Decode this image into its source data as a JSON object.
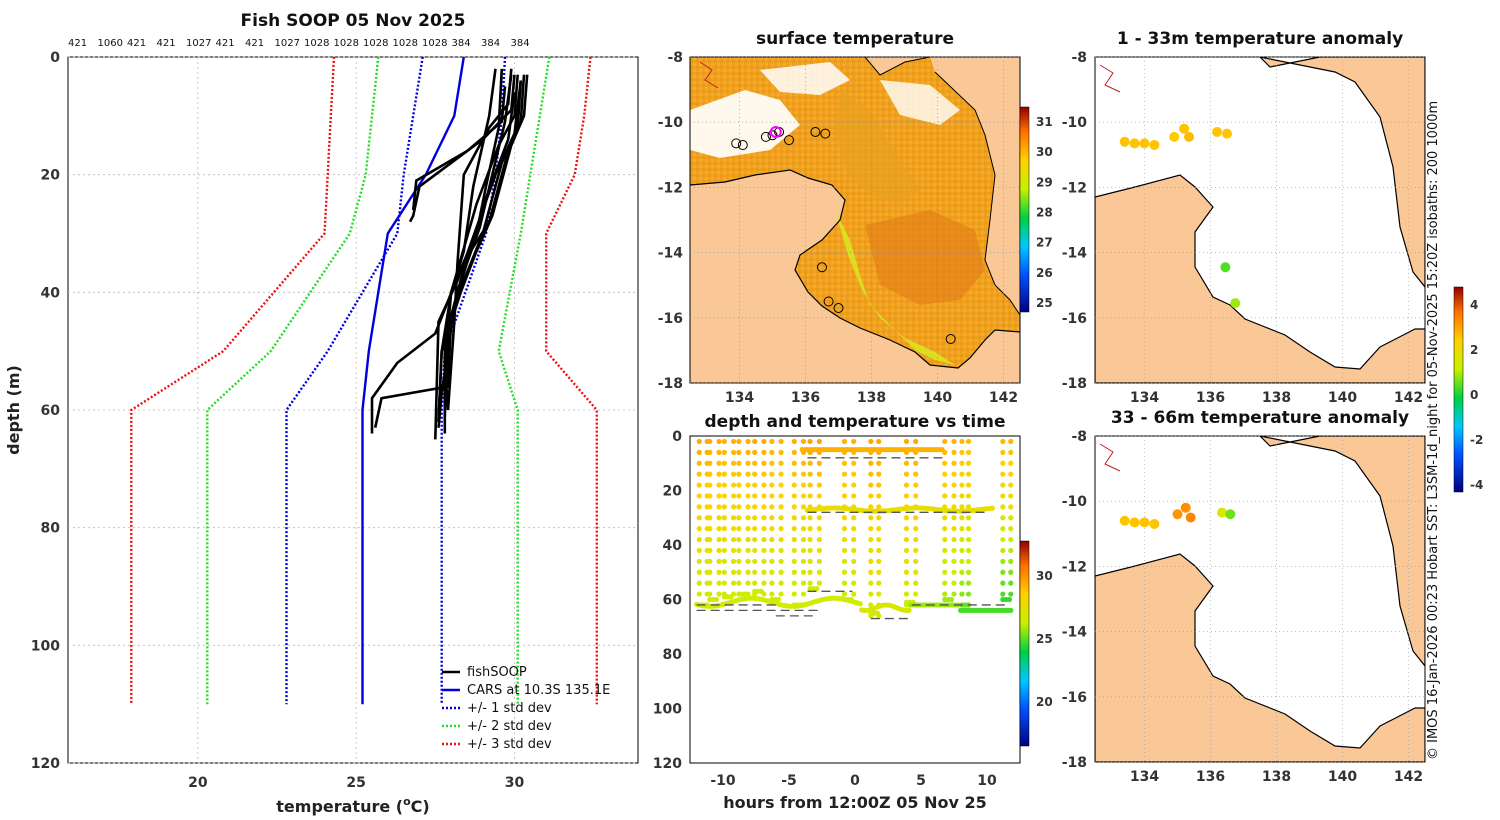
{
  "chart_data": [
    {
      "type": "line",
      "title": "Fish SOOP 05 Nov 2025",
      "xlabel": "temperature (",
      "xlabel_sup": "o",
      "xlabel_end": "C)",
      "ylabel": "depth (m)",
      "xlim": [
        15.9,
        33.9
      ],
      "ylim": [
        120,
        0
      ],
      "xticks": [
        20,
        25,
        30
      ],
      "yticks": [
        0,
        20,
        40,
        60,
        80,
        100,
        120
      ],
      "grid": true,
      "legend_position": "bottom-right",
      "top_labels": [
        "421",
        "1060",
        "421",
        "421",
        "1027",
        "421",
        "421",
        "1027",
        "1028",
        "1028",
        "1028",
        "1028",
        "1028",
        "384",
        "384",
        "384"
      ],
      "legend": [
        "fishSOOP",
        "CARS at 10.3S 135.1E",
        "+/- 1 std dev",
        "+/- 2 std dev",
        "+/- 3 std dev"
      ],
      "series": [
        {
          "name": "CARS at 10.3S 135.1E",
          "color": "#0000dd",
          "style": "solid",
          "points": [
            [
              28.4,
              0
            ],
            [
              28.1,
              10
            ],
            [
              27.2,
              20
            ],
            [
              26.0,
              30
            ],
            [
              25.7,
              40
            ],
            [
              25.4,
              50
            ],
            [
              25.2,
              60
            ],
            [
              25.2,
              110
            ]
          ]
        },
        {
          "name": "+/- 1 std dev",
          "color": "#0000dd",
          "style": "dotted",
          "points": [
            [
              27.1,
              0
            ],
            [
              26.8,
              10
            ],
            [
              26.5,
              20
            ],
            [
              26.3,
              30
            ],
            [
              24.1,
              50
            ],
            [
              22.8,
              60
            ],
            [
              22.8,
              110
            ]
          ]
        },
        {
          "name": "+/- 1 std dev",
          "color": "#0000dd",
          "style": "dotted",
          "points": [
            [
              29.7,
              0
            ],
            [
              29.6,
              10
            ],
            [
              29.4,
              20
            ],
            [
              29.1,
              30
            ],
            [
              27.8,
              50
            ],
            [
              27.7,
              60
            ],
            [
              27.7,
              110
            ]
          ]
        },
        {
          "name": "+/- 2 std dev",
          "color": "#22dd22",
          "style": "dotted",
          "points": [
            [
              25.7,
              0
            ],
            [
              25.5,
              10
            ],
            [
              25.3,
              20
            ],
            [
              24.8,
              30
            ],
            [
              22.3,
              50
            ],
            [
              20.3,
              60
            ],
            [
              20.3,
              110
            ]
          ]
        },
        {
          "name": "+/- 2 std dev",
          "color": "#22dd22",
          "style": "dotted",
          "points": [
            [
              31.1,
              0
            ],
            [
              30.8,
              10
            ],
            [
              30.5,
              20
            ],
            [
              30.2,
              30
            ],
            [
              29.5,
              50
            ],
            [
              30.1,
              60
            ],
            [
              30.1,
              110
            ]
          ]
        },
        {
          "name": "+/- 3 std dev",
          "color": "#ee1111",
          "style": "dotted",
          "points": [
            [
              24.3,
              0
            ],
            [
              24.2,
              10
            ],
            [
              24.1,
              20
            ],
            [
              24.0,
              30
            ],
            [
              20.8,
              50
            ],
            [
              17.9,
              60
            ],
            [
              17.9,
              110
            ]
          ]
        },
        {
          "name": "+/- 3 std dev",
          "color": "#ee1111",
          "style": "dotted",
          "points": [
            [
              32.4,
              0
            ],
            [
              32.2,
              10
            ],
            [
              31.9,
              20
            ],
            [
              31.0,
              30
            ],
            [
              31.0,
              50
            ],
            [
              32.6,
              60
            ],
            [
              32.6,
              110
            ]
          ]
        }
      ],
      "profiles": [
        [
          [
            29.9,
            2
          ],
          [
            29.8,
            8
          ],
          [
            29.2,
            12
          ],
          [
            28.4,
            20
          ],
          [
            28.2,
            35
          ],
          [
            28.1,
            45
          ],
          [
            27.9,
            60
          ]
        ],
        [
          [
            30.1,
            3
          ],
          [
            30.0,
            10
          ],
          [
            29.5,
            15
          ],
          [
            28.8,
            25
          ],
          [
            28.0,
            40
          ],
          [
            27.7,
            50
          ],
          [
            27.6,
            62
          ]
        ],
        [
          [
            30.2,
            4
          ],
          [
            30.1,
            12
          ],
          [
            29.6,
            18
          ],
          [
            29.0,
            30
          ],
          [
            28.4,
            38
          ],
          [
            27.8,
            48
          ],
          [
            27.8,
            64
          ]
        ],
        [
          [
            30.0,
            3
          ],
          [
            29.9,
            9
          ],
          [
            29.0,
            14
          ],
          [
            27.0,
            22
          ],
          [
            26.8,
            27
          ],
          [
            26.7,
            28
          ]
        ],
        [
          [
            29.7,
            5
          ],
          [
            29.6,
            11
          ],
          [
            28.5,
            16
          ],
          [
            26.9,
            21
          ],
          [
            26.8,
            26
          ]
        ],
        [
          [
            30.3,
            3
          ],
          [
            30.2,
            11
          ],
          [
            29.8,
            16
          ],
          [
            29.2,
            28
          ],
          [
            28.5,
            34
          ],
          [
            28.0,
            44
          ],
          [
            27.9,
            56
          ],
          [
            25.8,
            58
          ],
          [
            25.6,
            63
          ]
        ],
        [
          [
            29.6,
            2
          ],
          [
            29.5,
            12
          ],
          [
            29.1,
            22
          ],
          [
            28.8,
            30
          ],
          [
            28.3,
            36
          ],
          [
            27.5,
            47
          ],
          [
            26.3,
            52
          ],
          [
            25.5,
            58
          ],
          [
            25.5,
            64
          ]
        ],
        [
          [
            30.2,
            4
          ],
          [
            30.0,
            13
          ],
          [
            29.4,
            20
          ],
          [
            28.6,
            32
          ],
          [
            28.2,
            38
          ],
          [
            27.6,
            45
          ],
          [
            27.5,
            65
          ]
        ],
        [
          [
            29.4,
            2
          ],
          [
            29.2,
            10
          ],
          [
            28.7,
            22
          ],
          [
            28.4,
            33
          ],
          [
            28.0,
            40
          ],
          [
            27.8,
            52
          ],
          [
            27.9,
            60
          ]
        ],
        [
          [
            30.0,
            6
          ],
          [
            29.8,
            14
          ],
          [
            29.1,
            24
          ],
          [
            28.7,
            31
          ],
          [
            28.3,
            38
          ],
          [
            27.9,
            46
          ],
          [
            27.8,
            61
          ]
        ],
        [
          [
            29.9,
            3
          ],
          [
            29.7,
            11
          ],
          [
            29.3,
            20
          ],
          [
            28.9,
            29
          ],
          [
            28.5,
            35
          ],
          [
            28.1,
            42
          ],
          [
            27.9,
            50
          ],
          [
            27.7,
            57
          ],
          [
            27.6,
            63
          ]
        ],
        [
          [
            30.4,
            3
          ],
          [
            30.3,
            10
          ],
          [
            29.9,
            15
          ],
          [
            29.3,
            27
          ],
          [
            28.8,
            33
          ],
          [
            28.3,
            40
          ],
          [
            27.7,
            50
          ],
          [
            27.6,
            62
          ]
        ]
      ]
    },
    {
      "type": "heatmap",
      "title": "surface temperature",
      "xticks": [
        134,
        136,
        138,
        140,
        142
      ],
      "yticks": [
        -8,
        -10,
        -12,
        -14,
        -16,
        -18
      ],
      "colorbar_ticks": [
        25,
        26,
        27,
        28,
        29,
        30,
        31
      ],
      "colorbar_range": [
        24.7,
        31.5
      ]
    },
    {
      "type": "scatter",
      "title": "1 - 33m temperature anomaly",
      "xticks": [
        134,
        136,
        138,
        140,
        142
      ],
      "yticks": [
        -8,
        -10,
        -12,
        -14,
        -16,
        -18
      ],
      "points": [
        {
          "lon": 133.4,
          "lat": -10.6,
          "anom": 2.6
        },
        {
          "lon": 133.7,
          "lat": -10.65,
          "anom": 2.6
        },
        {
          "lon": 134.0,
          "lat": -10.65,
          "anom": 2.6
        },
        {
          "lon": 134.3,
          "lat": -10.7,
          "anom": 2.6
        },
        {
          "lon": 134.9,
          "lat": -10.45,
          "anom": 2.5
        },
        {
          "lon": 135.2,
          "lat": -10.2,
          "anom": 2.6
        },
        {
          "lon": 135.35,
          "lat": -10.45,
          "anom": 2.7
        },
        {
          "lon": 136.2,
          "lat": -10.3,
          "anom": 2.6
        },
        {
          "lon": 136.5,
          "lat": -10.35,
          "anom": 2.6
        },
        {
          "lon": 136.45,
          "lat": -14.45,
          "anom": 0.4
        },
        {
          "lon": 136.75,
          "lat": -15.55,
          "anom": 0.9
        }
      ]
    },
    {
      "type": "scatter",
      "title": "33 - 66m temperature anomaly",
      "xticks": [
        134,
        136,
        138,
        140,
        142
      ],
      "yticks": [
        -8,
        -10,
        -12,
        -14,
        -16,
        -18
      ],
      "points": [
        {
          "lon": 133.4,
          "lat": -10.6,
          "anom": 2.6
        },
        {
          "lon": 133.7,
          "lat": -10.65,
          "anom": 2.6
        },
        {
          "lon": 134.0,
          "lat": -10.65,
          "anom": 2.6
        },
        {
          "lon": 134.3,
          "lat": -10.7,
          "anom": 2.6
        },
        {
          "lon": 135.0,
          "lat": -10.4,
          "anom": 3.2
        },
        {
          "lon": 135.25,
          "lat": -10.2,
          "anom": 3.3
        },
        {
          "lon": 135.4,
          "lat": -10.5,
          "anom": 3.4
        },
        {
          "lon": 136.35,
          "lat": -10.35,
          "anom": 1.6
        },
        {
          "lon": 136.6,
          "lat": -10.4,
          "anom": 0.6
        }
      ]
    },
    {
      "type": "scatter",
      "title": "depth and temperature vs time",
      "xlabel": "hours from 12:00Z 05 Nov 25",
      "xlim": [
        -12.5,
        12.5
      ],
      "ylim": [
        120,
        0
      ],
      "xticks": [
        -10,
        -5,
        0,
        5,
        10
      ],
      "yticks": [
        0,
        20,
        40,
        60,
        80,
        100,
        120
      ],
      "colorbar_ticks": [
        20,
        25,
        30
      ],
      "colorbar_range": [
        16.5,
        32.8
      ]
    }
  ],
  "anomaly_colorbar": {
    "ticks": [
      4,
      2,
      0,
      -2,
      -4
    ],
    "range": [
      -4.3,
      4.8
    ]
  },
  "side_caption": "© IMOS 16-Jan-2026 00:23 Hobart SST: L3SM-1d_night for 05-Nov-2025 15:20Z isobaths: 200  1000m"
}
